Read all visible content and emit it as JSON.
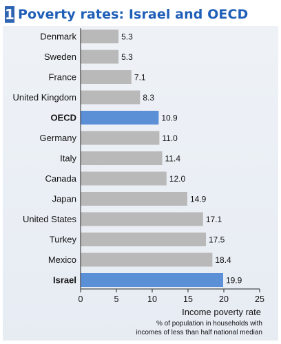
{
  "title": {
    "number": "1",
    "text": "Poverty rates: Israel and OECD"
  },
  "colors": {
    "title": "#1f5fb8",
    "bar_default": "#b9b9b9",
    "bar_highlight": "#5b8fd6",
    "panel_bg": "#e9edf3"
  },
  "chart_data": {
    "type": "bar",
    "orientation": "horizontal",
    "categories": [
      "Denmark",
      "Sweden",
      "France",
      "United Kingdom",
      "OECD",
      "Germany",
      "Italy",
      "Canada",
      "Japan",
      "United States",
      "Turkey",
      "Mexico",
      "Israel"
    ],
    "values": [
      5.3,
      5.3,
      7.1,
      8.3,
      10.9,
      11.0,
      11.4,
      12.0,
      14.9,
      17.1,
      17.5,
      18.4,
      19.9
    ],
    "value_labels": [
      "5.3",
      "5.3",
      "7.1",
      "8.3",
      "10.9",
      "11.0",
      "11.4",
      "12.0",
      "14.9",
      "17.1",
      "17.5",
      "18.4",
      "19.9"
    ],
    "highlighted": [
      "OECD",
      "Israel"
    ],
    "xlim": [
      0,
      25
    ],
    "xticks": [
      "0",
      "5",
      "10",
      "15",
      "20",
      "25"
    ],
    "xlabel": "Income poverty rate",
    "xlabel_note": [
      "% of population in households with",
      "incomes of less than half national median"
    ],
    "grid": false,
    "legend": "none"
  }
}
